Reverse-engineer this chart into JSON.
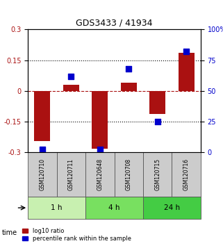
{
  "title": "GDS3433 / 41934",
  "samples": [
    "GSM120710",
    "GSM120711",
    "GSM120648",
    "GSM120708",
    "GSM120715",
    "GSM120716"
  ],
  "log10_ratio": [
    -0.245,
    0.03,
    -0.285,
    0.04,
    -0.115,
    0.185
  ],
  "percentile_rank": [
    2,
    62,
    2,
    68,
    25,
    82
  ],
  "time_groups": [
    {
      "label": "1 h",
      "samples": [
        0,
        1
      ],
      "color": "#c8f0b0"
    },
    {
      "label": "4 h",
      "samples": [
        2,
        3
      ],
      "color": "#78e060"
    },
    {
      "label": "24 h",
      "samples": [
        4,
        5
      ],
      "color": "#44cc44"
    }
  ],
  "bar_color": "#aa1111",
  "dot_color": "#0000cc",
  "ylim_left": [
    -0.3,
    0.3
  ],
  "ylim_right": [
    0,
    100
  ],
  "yticks_left": [
    -0.3,
    -0.15,
    0,
    0.15,
    0.3
  ],
  "yticks_right": [
    0,
    25,
    50,
    75,
    100
  ],
  "ytick_labels_left": [
    "-0.3",
    "-0.15",
    "0",
    "0.15",
    "0.3"
  ],
  "ytick_labels_right": [
    "0",
    "25",
    "50",
    "75",
    "100%"
  ],
  "hlines_dotted": [
    -0.15,
    0.15
  ],
  "hline_red_dashed": 0,
  "grid_color": "#000000",
  "bar_width": 0.55,
  "label_log10": "log10 ratio",
  "label_pct": "percentile rank within the sample",
  "time_label": "time",
  "sample_box_color": "#cccccc",
  "sample_box_edge": "#555555"
}
